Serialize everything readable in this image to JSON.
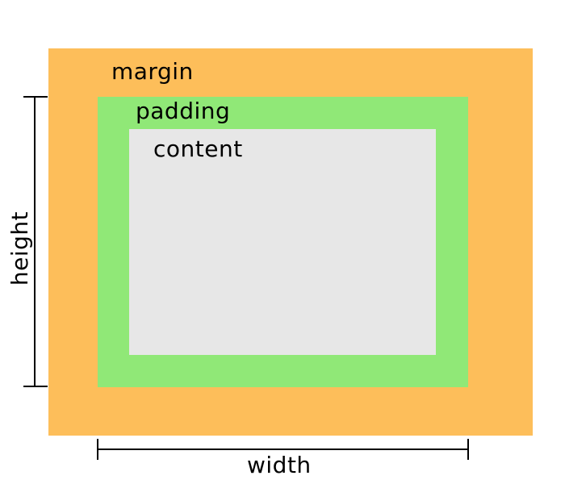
{
  "labels": {
    "margin": "margin",
    "padding": "padding",
    "content": "content",
    "width": "width",
    "height": "height"
  },
  "colors": {
    "margin": "#FDBE5A",
    "padding": "#90E877",
    "content": "#E7E7E7",
    "dimension_line": "#000000"
  }
}
